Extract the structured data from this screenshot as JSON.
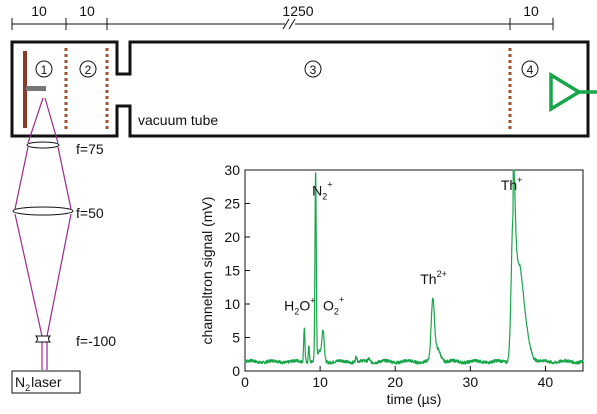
{
  "setup": {
    "dimensions": [
      "10",
      "10",
      "1250",
      "10"
    ],
    "regions": [
      "1",
      "2",
      "3",
      "4"
    ],
    "tube_label": "vacuum tube",
    "lenses": [
      "f=75",
      "f=50",
      "f=-100"
    ],
    "laser": {
      "symbol": "N",
      "subscript": "2",
      "suffix": "laser"
    },
    "colors": {
      "laser_beam": "#a0288c",
      "grid": "#a0522d",
      "detector": "#19a64a",
      "plate": "#8b3a2a"
    }
  },
  "chart_data": {
    "type": "line",
    "xlabel": "time (µs)",
    "ylabel": "channeltron signal (mV)",
    "xlim": [
      0,
      45
    ],
    "ylim": [
      0,
      30
    ],
    "xticks": [
      0,
      10,
      20,
      30,
      40
    ],
    "yticks": [
      0,
      5,
      10,
      15,
      20,
      25,
      30
    ],
    "series_color": "#19a64a",
    "baseline_mV": 1.4,
    "peaks": [
      {
        "x": 7.9,
        "y": 6.5
      },
      {
        "x": 8.5,
        "y": 4.0
      },
      {
        "x": 9.4,
        "y": 29.5
      },
      {
        "x": 10.4,
        "y": 5.5
      },
      {
        "x": 25.0,
        "y": 10.0
      },
      {
        "x": 35.7,
        "y": 25.0
      }
    ],
    "annotations": [
      {
        "base": "H",
        "sub": "2",
        "mid": "O",
        "sup": "+",
        "x": 7.3,
        "y": 9.0
      },
      {
        "base": "N",
        "sub": "2",
        "sup": "+",
        "x": 10.3,
        "y": 26.2
      },
      {
        "base": "O",
        "sub": "2",
        "sup": "+",
        "x": 11.8,
        "y": 9.0
      },
      {
        "base": "Th",
        "sup": "2+",
        "x": 25.1,
        "y": 13.0
      },
      {
        "base": "Th",
        "sup": "+",
        "x": 35.5,
        "y": 27.0
      }
    ]
  }
}
